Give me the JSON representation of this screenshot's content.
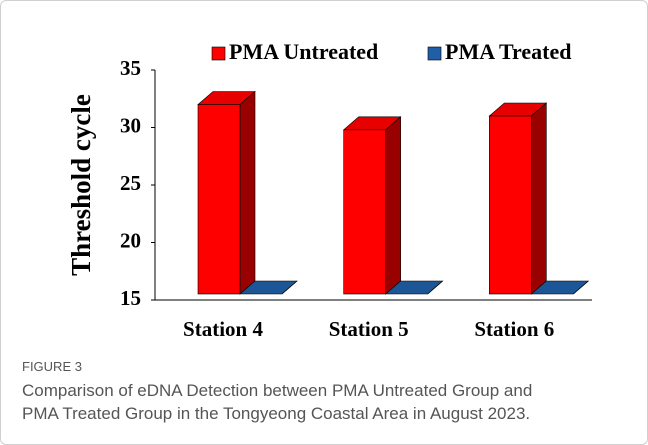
{
  "chart_data": {
    "type": "bar3d",
    "ylabel": "Threshold cycle",
    "categories": [
      "Station 4",
      "Station 5",
      "Station 6"
    ],
    "series": [
      {
        "name": "PMA Untreated",
        "color": "#ff0000",
        "values": [
          32,
          29.8,
          31
        ]
      },
      {
        "name": "PMA Treated",
        "color": "#1f5fa8",
        "values": [
          15,
          15,
          15
        ]
      }
    ],
    "ylim": [
      15,
      35
    ],
    "yticks": [
      15,
      20,
      25,
      30,
      35
    ],
    "legend": "top"
  },
  "figure": {
    "label": "FIGURE 3",
    "caption": [
      "Comparison of eDNA Detection between PMA Untreated Group and",
      "PMA Treated Group in the Tongyeong Coastal Area in August 2023."
    ]
  }
}
